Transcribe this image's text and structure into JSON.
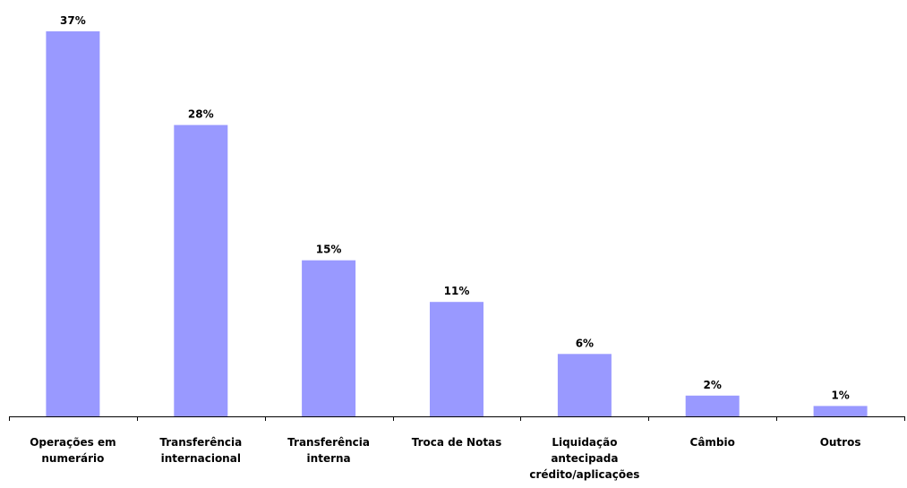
{
  "chart_data": {
    "type": "bar",
    "categories": [
      [
        "Operações em",
        "numerário"
      ],
      [
        "Transferência",
        "internacional"
      ],
      [
        "Transferência",
        "interna"
      ],
      [
        "Troca de Notas"
      ],
      [
        "Liquidação",
        "antecipada",
        "crédito/aplicações"
      ],
      [
        "Câmbio"
      ],
      [
        "Outros"
      ]
    ],
    "values": [
      37,
      28,
      15,
      11,
      6,
      2,
      1
    ],
    "data_labels": [
      "37%",
      "28%",
      "15%",
      "11%",
      "6%",
      "2%",
      "1%"
    ],
    "ylim": [
      0,
      38
    ],
    "grid": false,
    "legend": "none",
    "bar_color": "#9999ff"
  }
}
